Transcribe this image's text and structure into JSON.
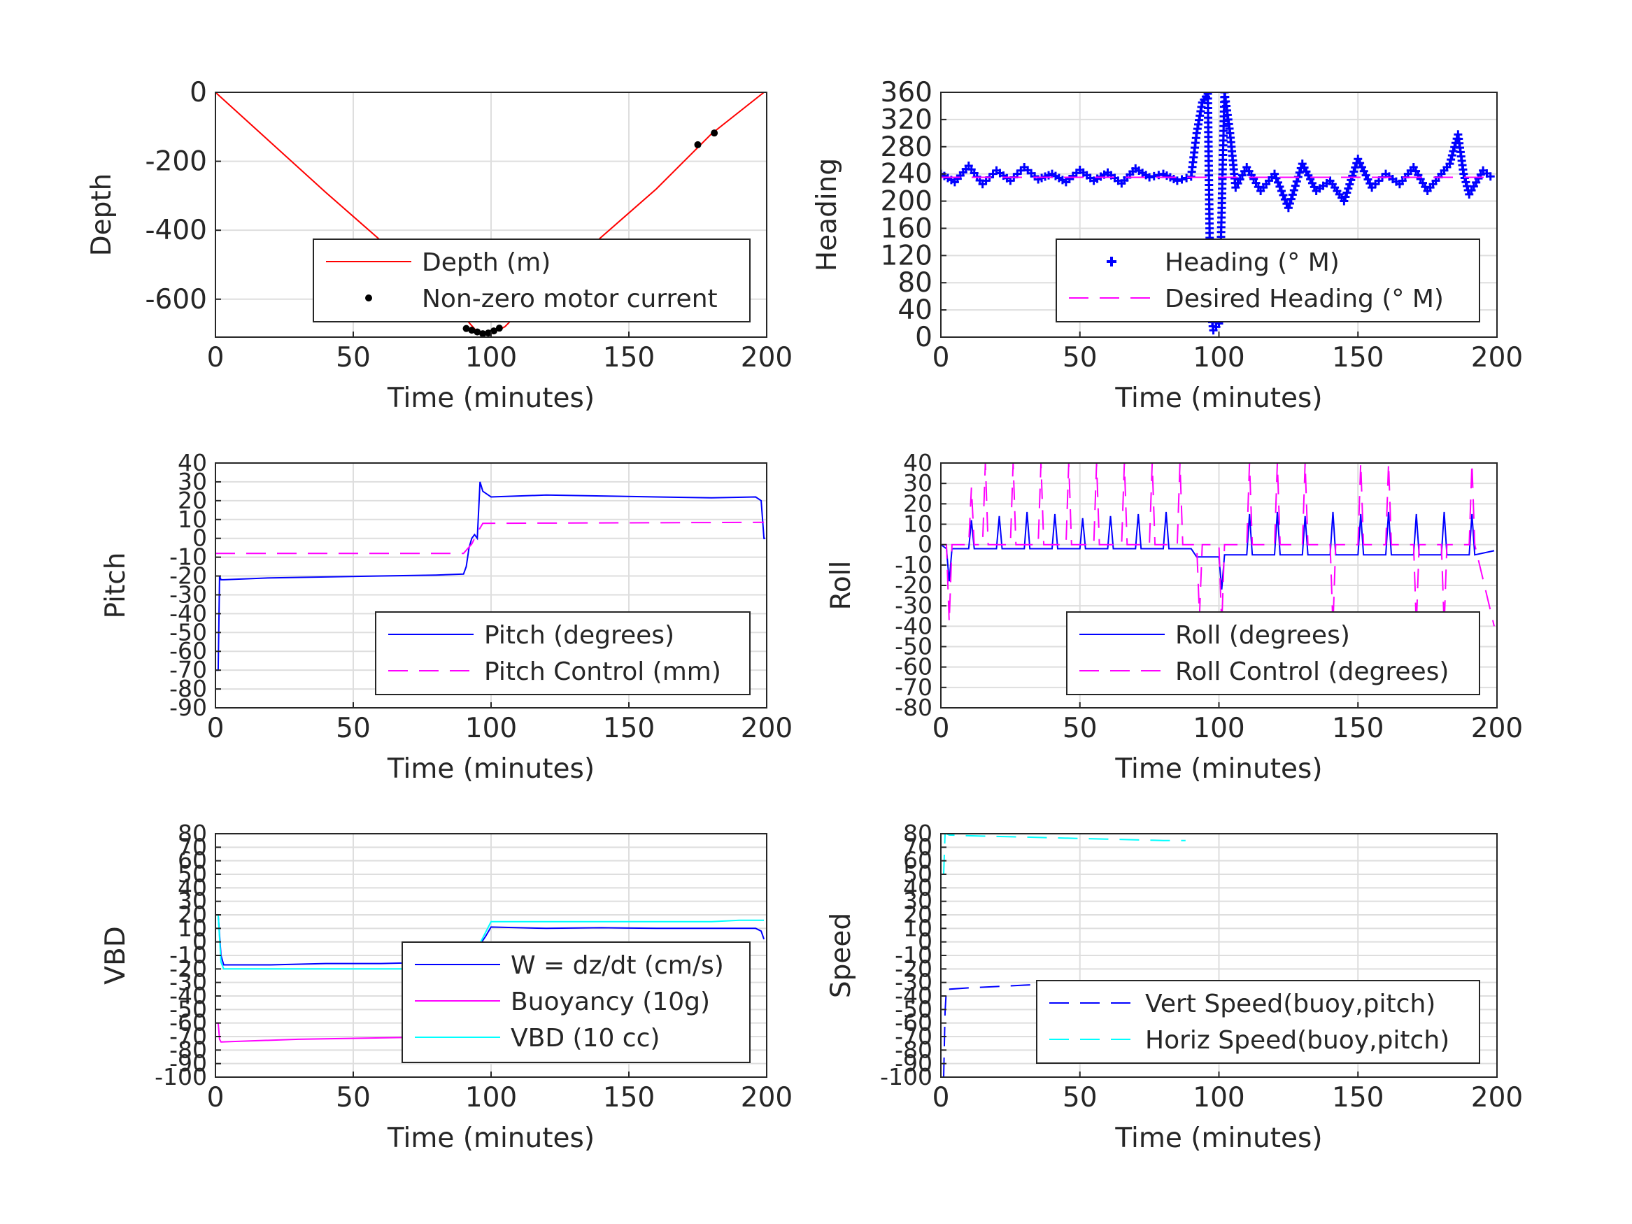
{
  "colors": {
    "red": "#ff0000",
    "blue": "#0000ff",
    "magenta": "#ff00ff",
    "cyan": "#00ffff",
    "black": "#000000"
  },
  "chart_data": [
    {
      "type": "line",
      "id": "depth",
      "xlabel": "Time (minutes)",
      "ylabel": "Depth",
      "xlim": [
        0,
        200
      ],
      "ylim": [
        -710,
        0
      ],
      "xticks": [
        0,
        50,
        100,
        150,
        200
      ],
      "yticks": [
        0,
        -200,
        -400,
        -600
      ],
      "legend": "bottom-right",
      "series": [
        {
          "name": "Depth (m)",
          "color": "#ff0000",
          "style": "solid",
          "x": [
            0,
            20,
            40,
            60,
            80,
            90,
            95,
            100,
            105,
            120,
            140,
            160,
            180,
            199
          ],
          "y": [
            0,
            -145,
            -290,
            -430,
            -575,
            -650,
            -695,
            -700,
            -680,
            -560,
            -420,
            -280,
            -120,
            0
          ]
        },
        {
          "name": "Non-zero motor current",
          "color": "#000000",
          "style": "dots",
          "x": [
            91,
            93,
            95,
            97,
            99,
            101,
            103,
            175,
            181
          ],
          "y": [
            -685,
            -690,
            -695,
            -700,
            -698,
            -692,
            -684,
            -152,
            -118
          ]
        }
      ]
    },
    {
      "type": "scatter",
      "id": "heading",
      "xlabel": "Time (minutes)",
      "ylabel": "Heading",
      "xlim": [
        0,
        200
      ],
      "ylim": [
        0,
        360
      ],
      "xticks": [
        0,
        50,
        100,
        150,
        200
      ],
      "yticks": [
        0,
        40,
        80,
        120,
        160,
        200,
        240,
        280,
        320,
        360
      ],
      "legend": "bottom-right",
      "series": [
        {
          "name": "Heading (° M)",
          "color": "#0000ff",
          "style": "plus",
          "x": [
            0,
            5,
            10,
            15,
            20,
            25,
            30,
            35,
            40,
            45,
            50,
            55,
            60,
            65,
            70,
            75,
            80,
            85,
            90,
            92,
            94,
            96,
            97,
            98,
            100,
            102,
            104,
            106,
            110,
            115,
            120,
            125,
            130,
            135,
            140,
            145,
            150,
            155,
            160,
            165,
            170,
            175,
            180,
            183,
            186,
            188,
            190,
            195,
            199
          ],
          "y": [
            240,
            228,
            252,
            225,
            245,
            230,
            250,
            232,
            240,
            228,
            246,
            230,
            242,
            226,
            248,
            235,
            240,
            230,
            236,
            300,
            345,
            358,
            40,
            10,
            20,
            360,
            300,
            220,
            250,
            215,
            240,
            190,
            255,
            215,
            230,
            200,
            262,
            220,
            240,
            225,
            250,
            215,
            240,
            255,
            298,
            240,
            210,
            245,
            232
          ]
        },
        {
          "name": "Desired Heading (° M)",
          "color": "#ff00ff",
          "style": "dashed",
          "x": [
            0,
            199
          ],
          "y": [
            235,
            235
          ]
        }
      ]
    },
    {
      "type": "line",
      "id": "pitch",
      "xlabel": "Time (minutes)",
      "ylabel": "Pitch",
      "xlim": [
        0,
        200
      ],
      "ylim": [
        -90,
        40
      ],
      "xticks": [
        0,
        50,
        100,
        150,
        200
      ],
      "yticks": [
        40,
        30,
        20,
        10,
        0,
        -10,
        -20,
        -30,
        -40,
        -50,
        -60,
        -70,
        -80,
        -90
      ],
      "legend": "bottom-right",
      "series": [
        {
          "name": "Pitch (degrees)",
          "color": "#0000ff",
          "style": "solid",
          "x": [
            0,
            1,
            1.5,
            2,
            3,
            20,
            40,
            60,
            80,
            90,
            91,
            92,
            93,
            94,
            95,
            96,
            97,
            100,
            120,
            140,
            160,
            180,
            196,
            198,
            199,
            199.5
          ],
          "y": [
            -70,
            -70,
            -20,
            -22,
            -22,
            -21,
            -20.5,
            -20,
            -19.5,
            -19,
            -15,
            -5,
            0,
            2,
            0,
            30,
            25,
            22,
            23,
            22.5,
            22,
            21.5,
            22,
            20,
            0,
            0
          ]
        },
        {
          "name": "Pitch Control (mm)",
          "color": "#ff00ff",
          "style": "dashed",
          "x": [
            0,
            89,
            90,
            93,
            94,
            95,
            97,
            199
          ],
          "y": [
            -8,
            -8,
            -8,
            -3,
            0,
            3,
            8,
            8.5
          ]
        }
      ]
    },
    {
      "type": "line",
      "id": "roll",
      "xlabel": "Time (minutes)",
      "ylabel": "Roll",
      "xlim": [
        0,
        200
      ],
      "ylim": [
        -80,
        40
      ],
      "xticks": [
        0,
        50,
        100,
        150,
        200
      ],
      "yticks": [
        40,
        30,
        20,
        10,
        0,
        -10,
        -20,
        -30,
        -40,
        -50,
        -60,
        -70,
        -80
      ],
      "legend": "bottom-right",
      "series": [
        {
          "name": "Roll (degrees)",
          "color": "#0000ff",
          "style": "solid",
          "x": [
            0,
            2,
            3,
            4,
            10,
            11,
            12,
            20,
            21,
            22,
            30,
            31,
            32,
            40,
            41,
            42,
            50,
            51,
            52,
            60,
            61,
            62,
            70,
            71,
            72,
            80,
            81,
            82,
            90,
            92,
            100,
            101,
            102,
            110,
            111,
            112,
            120,
            121,
            122,
            130,
            131,
            132,
            140,
            141,
            142,
            150,
            151,
            152,
            160,
            161,
            162,
            170,
            171,
            172,
            180,
            181,
            182,
            190,
            191,
            192,
            199
          ],
          "y": [
            0,
            -2,
            -18,
            -2,
            -2,
            12,
            -2,
            -2,
            14,
            -2,
            -2,
            16,
            -2,
            -2,
            15,
            -2,
            -2,
            13,
            -2,
            -2,
            14,
            -2,
            -2,
            15,
            -2,
            -2,
            16,
            -2,
            -2,
            -6,
            -6,
            -22,
            -5,
            -5,
            15,
            -5,
            -5,
            16,
            -5,
            -5,
            14,
            -5,
            -5,
            16,
            -5,
            -5,
            15,
            -5,
            -5,
            16,
            -5,
            -5,
            15,
            -5,
            -5,
            16,
            -5,
            -5,
            15,
            -5,
            -3
          ]
        },
        {
          "name": "Roll Control (degrees)",
          "color": "#ff00ff",
          "style": "dashed",
          "x": [
            0,
            2,
            3,
            4,
            10,
            11,
            12,
            15,
            16,
            17,
            25,
            26,
            27,
            35,
            36,
            37,
            45,
            46,
            47,
            55,
            56,
            57,
            65,
            66,
            67,
            75,
            76,
            77,
            85,
            86,
            87,
            92,
            93,
            94,
            100,
            101,
            102,
            110,
            111,
            112,
            120,
            121,
            122,
            130,
            131,
            132,
            140,
            141,
            142,
            150,
            151,
            152,
            160,
            161,
            162,
            170,
            171,
            172,
            180,
            181,
            182,
            190,
            191,
            192,
            199
          ],
          "y": [
            0,
            0,
            -38,
            0,
            0,
            28,
            0,
            0,
            40,
            0,
            0,
            40,
            0,
            0,
            40,
            0,
            0,
            40,
            0,
            0,
            40,
            0,
            0,
            40,
            0,
            0,
            40,
            0,
            0,
            40,
            0,
            0,
            -35,
            0,
            0,
            -40,
            0,
            0,
            40,
            0,
            0,
            40,
            0,
            0,
            40,
            0,
            0,
            -40,
            0,
            0,
            40,
            0,
            0,
            40,
            0,
            0,
            -40,
            0,
            0,
            -40,
            0,
            0,
            40,
            0,
            -40
          ]
        }
      ]
    },
    {
      "type": "line",
      "id": "vbd",
      "xlabel": "Time (minutes)",
      "ylabel": "VBD",
      "xlim": [
        0,
        200
      ],
      "ylim": [
        -100,
        80
      ],
      "xticks": [
        0,
        50,
        100,
        150,
        200
      ],
      "yticks": [
        80,
        70,
        60,
        50,
        40,
        30,
        20,
        10,
        0,
        -10,
        -20,
        -30,
        -40,
        -50,
        -60,
        -70,
        -80,
        -90,
        -100
      ],
      "legend": "bottom-right",
      "series": [
        {
          "name": "W = dz/dt (cm/s)",
          "color": "#0000ff",
          "style": "solid",
          "x": [
            0,
            1,
            2,
            3,
            20,
            40,
            60,
            80,
            90,
            92,
            94,
            96,
            98,
            100,
            120,
            140,
            160,
            180,
            196,
            198,
            199
          ],
          "y": [
            20,
            20,
            -10,
            -17,
            -17,
            -16,
            -16,
            -15,
            -15,
            -12,
            -8,
            -2,
            4,
            11,
            10,
            10.5,
            10,
            10,
            10,
            8,
            2
          ]
        },
        {
          "name": "Buoyancy (10g)",
          "color": "#ff00ff",
          "style": "solid",
          "x": [
            0,
            1,
            1.5,
            2,
            30,
            60,
            90
          ],
          "y": [
            -60,
            -60,
            -72,
            -74,
            -72,
            -71,
            -70
          ]
        },
        {
          "name": "VBD (10 cc)",
          "color": "#00ffff",
          "style": "solid",
          "x": [
            0,
            1,
            2,
            3,
            90,
            92,
            95,
            100,
            103,
            180,
            190,
            199
          ],
          "y": [
            20,
            20,
            -15,
            -20,
            -20,
            -16,
            -5,
            15,
            15,
            15,
            16,
            16
          ]
        }
      ]
    },
    {
      "type": "line",
      "id": "speed",
      "xlabel": "Time (minutes)",
      "ylabel": "Speed",
      "xlim": [
        0,
        200
      ],
      "ylim": [
        -100,
        80
      ],
      "xticks": [
        0,
        50,
        100,
        150,
        200
      ],
      "yticks": [
        80,
        70,
        60,
        50,
        40,
        30,
        20,
        10,
        0,
        -10,
        -20,
        -30,
        -40,
        -50,
        -60,
        -70,
        -80,
        -90,
        -100
      ],
      "legend": "bottom-right",
      "series": [
        {
          "name": "Vert Speed(buoy,pitch)",
          "color": "#0000ff",
          "style": "dashed",
          "x": [
            1,
            1.5,
            2,
            3,
            10,
            20,
            30,
            40,
            50,
            60,
            70,
            80,
            88
          ],
          "y": [
            -100,
            -52,
            -34,
            -35,
            -34,
            -33,
            -32,
            -31,
            -31,
            -30.5,
            -30,
            -30,
            -30
          ]
        },
        {
          "name": "Horiz Speed(buoy,pitch)",
          "color": "#00ffff",
          "style": "dashed",
          "x": [
            1,
            1.5,
            2,
            3,
            10,
            20,
            30,
            40,
            50,
            60,
            70,
            80,
            88
          ],
          "y": [
            50,
            80,
            80,
            79,
            78.5,
            78,
            77.5,
            77,
            76.5,
            76,
            75.5,
            75,
            75
          ]
        }
      ]
    }
  ]
}
